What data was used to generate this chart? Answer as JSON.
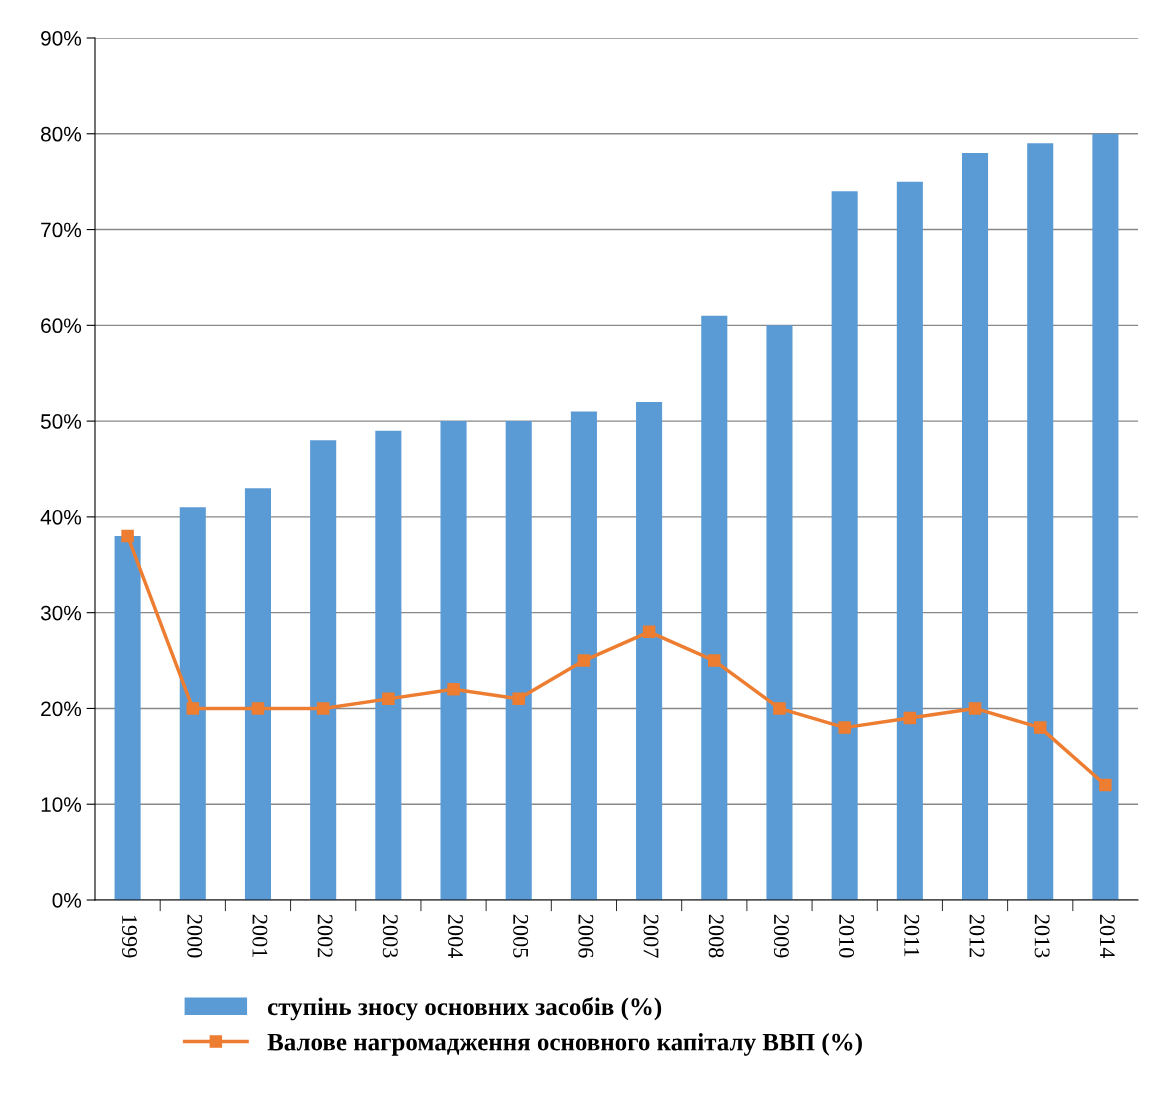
{
  "chart_data": {
    "type": "bar",
    "categories": [
      "1999",
      "2000",
      "2001",
      "2002",
      "2003",
      "2004",
      "2005",
      "2006",
      "2007",
      "2008",
      "2009",
      "2010",
      "2011",
      "2012",
      "2013",
      "2014"
    ],
    "series": [
      {
        "name": "ступінь зносу основних засобів (%)",
        "color": "#5b9bd5",
        "values": [
          38,
          41,
          43,
          48,
          49,
          50,
          50,
          51,
          52,
          61,
          60,
          74,
          75,
          78,
          79,
          80
        ]
      },
      {
        "name": "Валове нагромадження основного капіталу ВВП (%)",
        "type": "line",
        "color": "#ed7d31",
        "marker": "square",
        "line_style": "solid",
        "values": [
          38,
          20,
          20,
          20,
          21,
          22,
          21,
          25,
          28,
          25,
          20,
          18,
          19,
          20,
          18,
          12
        ]
      }
    ],
    "ylim": [
      0,
      90
    ],
    "yticks": [
      {
        "value": 0,
        "label": "0%"
      },
      {
        "value": 10,
        "label": "10%"
      },
      {
        "value": 20,
        "label": "20%"
      },
      {
        "value": 30,
        "label": "30%"
      },
      {
        "value": 40,
        "label": "40%"
      },
      {
        "value": 50,
        "label": "50%"
      },
      {
        "value": 60,
        "label": "60%"
      },
      {
        "value": 70,
        "label": "70%"
      },
      {
        "value": 80,
        "label": "80%"
      },
      {
        "value": 90,
        "label": "90%"
      }
    ],
    "grid": "y",
    "legend": "bottom"
  }
}
